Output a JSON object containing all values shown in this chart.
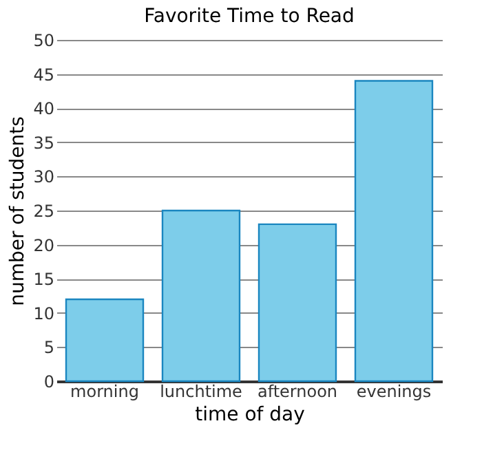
{
  "chart_data": {
    "type": "bar",
    "title": "Favorite Time to Read",
    "xlabel": "time of day",
    "ylabel": "number of students",
    "categories": [
      "morning",
      "lunchtime",
      "afternoon",
      "evenings"
    ],
    "values": [
      12,
      25,
      23,
      44
    ],
    "color": "#7dcdea",
    "ylim": [
      0,
      50
    ],
    "yticks": [
      0,
      5,
      10,
      15,
      20,
      25,
      30,
      35,
      40,
      45,
      50
    ],
    "grid": "y"
  }
}
